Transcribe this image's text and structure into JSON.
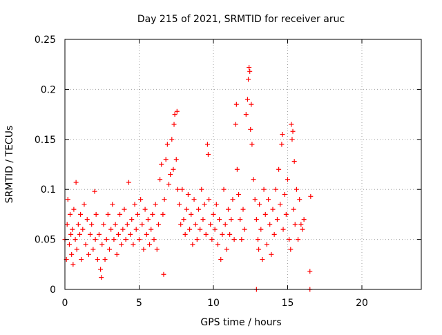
{
  "chart_data": {
    "type": "scatter",
    "title": "Day 215 of 2021, SRMTID for receiver aruc",
    "xlabel": "GPS time / hours",
    "ylabel": "SRMTID / TECUs",
    "xlim": [
      0,
      24
    ],
    "ylim": [
      0,
      0.25
    ],
    "grid": true,
    "marker": "+",
    "color": "#ff0000",
    "x_ticks": [
      {
        "value": 0,
        "label": "0"
      },
      {
        "value": 5,
        "label": "5"
      },
      {
        "value": 10,
        "label": "10"
      },
      {
        "value": 15,
        "label": "15"
      },
      {
        "value": 20,
        "label": "20"
      }
    ],
    "y_ticks": [
      {
        "value": 0,
        "label": "0"
      },
      {
        "value": 0.05,
        "label": "0.05"
      },
      {
        "value": 0.1,
        "label": "0.1"
      },
      {
        "value": 0.15,
        "label": "0.15"
      },
      {
        "value": 0.2,
        "label": "0.2"
      },
      {
        "value": 0.25,
        "label": "0.25"
      }
    ],
    "series": [
      {
        "name": "SRMTID",
        "points": [
          [
            0.0,
            0.05
          ],
          [
            0.1,
            0.03
          ],
          [
            0.15,
            0.065
          ],
          [
            0.2,
            0.09
          ],
          [
            0.3,
            0.045
          ],
          [
            0.35,
            0.075
          ],
          [
            0.4,
            0.055
          ],
          [
            0.45,
            0.035
          ],
          [
            0.5,
            0.06
          ],
          [
            0.55,
            0.025
          ],
          [
            0.6,
            0.08
          ],
          [
            0.7,
            0.05
          ],
          [
            0.75,
            0.107
          ],
          [
            0.8,
            0.04
          ],
          [
            0.9,
            0.065
          ],
          [
            1.0,
            0.055
          ],
          [
            1.05,
            0.075
          ],
          [
            1.1,
            0.03
          ],
          [
            1.2,
            0.06
          ],
          [
            1.3,
            0.085
          ],
          [
            1.4,
            0.045
          ],
          [
            1.5,
            0.07
          ],
          [
            1.6,
            0.035
          ],
          [
            1.7,
            0.055
          ],
          [
            1.8,
            0.065
          ],
          [
            1.9,
            0.04
          ],
          [
            2.0,
            0.098
          ],
          [
            2.05,
            0.05
          ],
          [
            2.1,
            0.075
          ],
          [
            2.2,
            0.03
          ],
          [
            2.3,
            0.055
          ],
          [
            2.4,
            0.02
          ],
          [
            2.45,
            0.012
          ],
          [
            2.5,
            0.045
          ],
          [
            2.6,
            0.065
          ],
          [
            2.7,
            0.03
          ],
          [
            2.8,
            0.05
          ],
          [
            2.9,
            0.075
          ],
          [
            3.0,
            0.04
          ],
          [
            3.1,
            0.06
          ],
          [
            3.2,
            0.085
          ],
          [
            3.3,
            0.05
          ],
          [
            3.4,
            0.065
          ],
          [
            3.5,
            0.035
          ],
          [
            3.6,
            0.055
          ],
          [
            3.7,
            0.075
          ],
          [
            3.8,
            0.045
          ],
          [
            3.9,
            0.06
          ],
          [
            4.0,
            0.08
          ],
          [
            4.1,
            0.05
          ],
          [
            4.2,
            0.065
          ],
          [
            4.3,
            0.107
          ],
          [
            4.4,
            0.055
          ],
          [
            4.5,
            0.07
          ],
          [
            4.6,
            0.045
          ],
          [
            4.7,
            0.085
          ],
          [
            4.8,
            0.06
          ],
          [
            4.9,
            0.075
          ],
          [
            5.0,
            0.05
          ],
          [
            5.1,
            0.09
          ],
          [
            5.2,
            0.065
          ],
          [
            5.3,
            0.04
          ],
          [
            5.4,
            0.08
          ],
          [
            5.5,
            0.055
          ],
          [
            5.6,
            0.07
          ],
          [
            5.7,
            0.045
          ],
          [
            5.8,
            0.06
          ],
          [
            5.9,
            0.075
          ],
          [
            6.0,
            0.05
          ],
          [
            6.1,
            0.085
          ],
          [
            6.2,
            0.04
          ],
          [
            6.3,
            0.065
          ],
          [
            6.4,
            0.11
          ],
          [
            6.5,
            0.125
          ],
          [
            6.6,
            0.075
          ],
          [
            6.65,
            0.015
          ],
          [
            6.7,
            0.09
          ],
          [
            6.8,
            0.13
          ],
          [
            6.9,
            0.145
          ],
          [
            7.0,
            0.105
          ],
          [
            7.1,
            0.115
          ],
          [
            7.2,
            0.15
          ],
          [
            7.3,
            0.12
          ],
          [
            7.35,
            0.165
          ],
          [
            7.4,
            0.175
          ],
          [
            7.5,
            0.13
          ],
          [
            7.55,
            0.178
          ],
          [
            7.6,
            0.1
          ],
          [
            7.7,
            0.085
          ],
          [
            7.8,
            0.065
          ],
          [
            7.9,
            0.1
          ],
          [
            8.0,
            0.07
          ],
          [
            8.1,
            0.055
          ],
          [
            8.2,
            0.08
          ],
          [
            8.3,
            0.095
          ],
          [
            8.4,
            0.06
          ],
          [
            8.5,
            0.075
          ],
          [
            8.6,
            0.045
          ],
          [
            8.7,
            0.09
          ],
          [
            8.8,
            0.065
          ],
          [
            8.9,
            0.05
          ],
          [
            9.0,
            0.08
          ],
          [
            9.1,
            0.06
          ],
          [
            9.2,
            0.1
          ],
          [
            9.3,
            0.07
          ],
          [
            9.4,
            0.085
          ],
          [
            9.5,
            0.055
          ],
          [
            9.6,
            0.145
          ],
          [
            9.65,
            0.135
          ],
          [
            9.7,
            0.09
          ],
          [
            9.8,
            0.065
          ],
          [
            9.9,
            0.05
          ],
          [
            10.0,
            0.075
          ],
          [
            10.1,
            0.06
          ],
          [
            10.2,
            0.085
          ],
          [
            10.3,
            0.045
          ],
          [
            10.4,
            0.07
          ],
          [
            10.5,
            0.03
          ],
          [
            10.6,
            0.055
          ],
          [
            10.7,
            0.1
          ],
          [
            10.8,
            0.065
          ],
          [
            10.9,
            0.04
          ],
          [
            11.0,
            0.08
          ],
          [
            11.1,
            0.055
          ],
          [
            11.2,
            0.07
          ],
          [
            11.3,
            0.09
          ],
          [
            11.4,
            0.05
          ],
          [
            11.5,
            0.165
          ],
          [
            11.55,
            0.185
          ],
          [
            11.6,
            0.12
          ],
          [
            11.7,
            0.095
          ],
          [
            11.8,
            0.07
          ],
          [
            11.9,
            0.05
          ],
          [
            12.0,
            0.08
          ],
          [
            12.1,
            0.06
          ],
          [
            12.2,
            0.175
          ],
          [
            12.3,
            0.19
          ],
          [
            12.35,
            0.21
          ],
          [
            12.4,
            0.222
          ],
          [
            12.45,
            0.218
          ],
          [
            12.5,
            0.16
          ],
          [
            12.55,
            0.185
          ],
          [
            12.6,
            0.145
          ],
          [
            12.7,
            0.11
          ],
          [
            12.8,
            0.09
          ],
          [
            12.9,
            0.07
          ],
          [
            13.0,
            0.05
          ],
          [
            13.05,
            0.04
          ],
          [
            13.1,
            0.085
          ],
          [
            13.2,
            0.06
          ],
          [
            13.3,
            0.03
          ],
          [
            13.4,
            0.1
          ],
          [
            13.5,
            0.075
          ],
          [
            13.6,
            0.045
          ],
          [
            13.7,
            0.09
          ],
          [
            13.8,
            0.065
          ],
          [
            13.9,
            0.035
          ],
          [
            14.0,
            0.08
          ],
          [
            14.1,
            0.055
          ],
          [
            14.2,
            0.1
          ],
          [
            14.3,
            0.07
          ],
          [
            14.4,
            0.12
          ],
          [
            14.5,
            0.085
          ],
          [
            14.6,
            0.145
          ],
          [
            14.65,
            0.155
          ],
          [
            14.7,
            0.06
          ],
          [
            14.8,
            0.095
          ],
          [
            14.9,
            0.075
          ],
          [
            15.0,
            0.11
          ],
          [
            15.1,
            0.05
          ],
          [
            15.2,
            0.04
          ],
          [
            15.25,
            0.165
          ],
          [
            15.3,
            0.15
          ],
          [
            15.35,
            0.158
          ],
          [
            15.4,
            0.08
          ],
          [
            15.45,
            0.128
          ],
          [
            15.5,
            0.065
          ],
          [
            15.6,
            0.1
          ],
          [
            15.7,
            0.05
          ],
          [
            15.8,
            0.09
          ],
          [
            15.9,
            0.065
          ],
          [
            16.0,
            0.06
          ],
          [
            16.1,
            0.07
          ],
          [
            16.5,
            0.018
          ],
          [
            16.55,
            0.093
          ],
          [
            12.9,
            0.0
          ],
          [
            16.5,
            0.0
          ]
        ]
      }
    ]
  }
}
